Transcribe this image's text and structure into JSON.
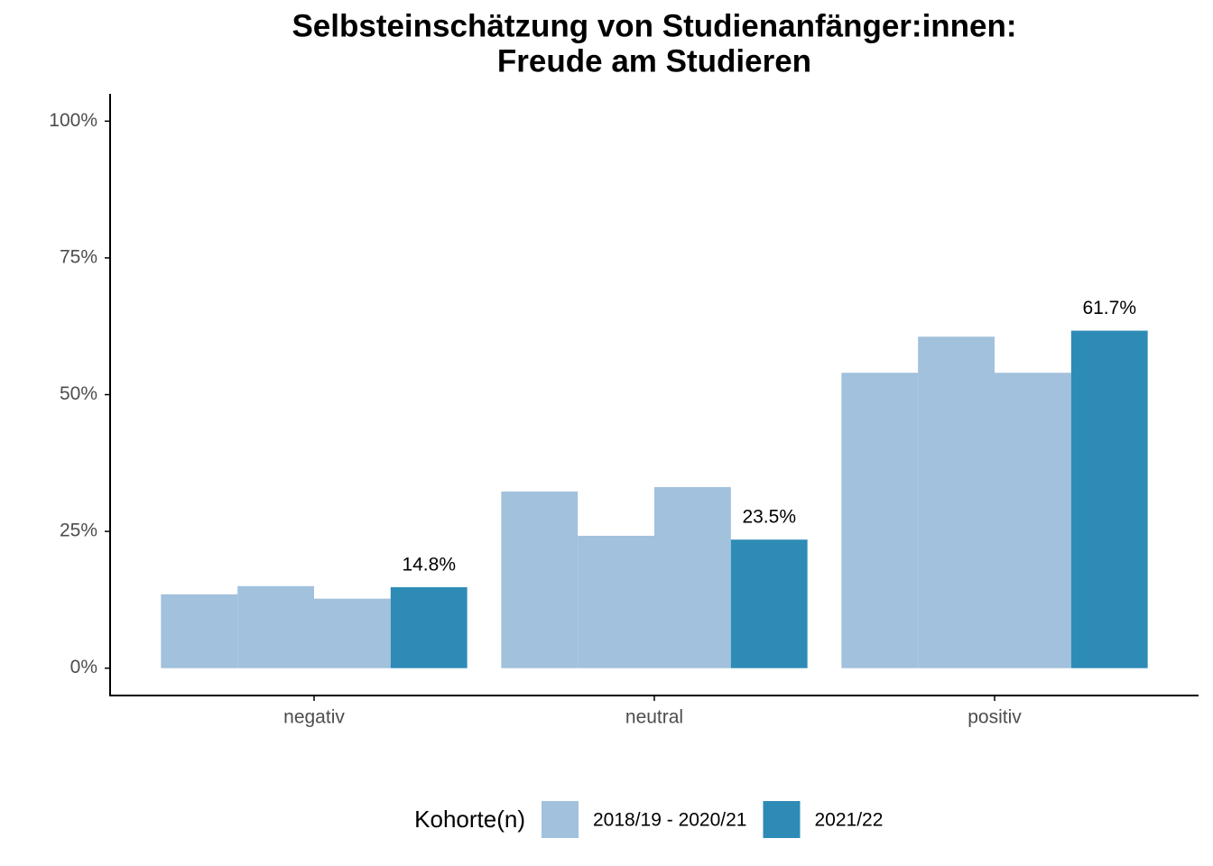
{
  "chart_data": {
    "type": "bar",
    "title": [
      "Selbsteinschätzung von Studienanfänger:innen:",
      "Freude am Studieren"
    ],
    "categories": [
      "negativ",
      "neutral",
      "positiv"
    ],
    "legend_title": "Kohorte(n)",
    "series": [
      {
        "name": "2018/19 - 2020/21",
        "color": "#a1c1dc",
        "values": [
          13.5,
          32.3,
          54.0
        ]
      },
      {
        "name": "2018/19 - 2020/21",
        "color": "#a1c1dc",
        "values": [
          15.0,
          24.2,
          60.6
        ]
      },
      {
        "name": "2018/19 - 2020/21",
        "color": "#a1c1dc",
        "values": [
          12.7,
          33.1,
          54.0
        ]
      },
      {
        "name": "2021/22",
        "color": "#2e8bb6",
        "values": [
          14.8,
          23.5,
          61.7
        ],
        "value_labels": [
          "14.8%",
          "23.5%",
          "61.7%"
        ]
      }
    ],
    "ylim": [
      -5,
      105
    ],
    "yticks": [
      {
        "value": 0,
        "label": "0%"
      },
      {
        "value": 25,
        "label": "25%"
      },
      {
        "value": 50,
        "label": "50%"
      },
      {
        "value": 75,
        "label": "75%"
      },
      {
        "value": 100,
        "label": "100%"
      }
    ],
    "grid": false,
    "legend_position": "bottom"
  }
}
